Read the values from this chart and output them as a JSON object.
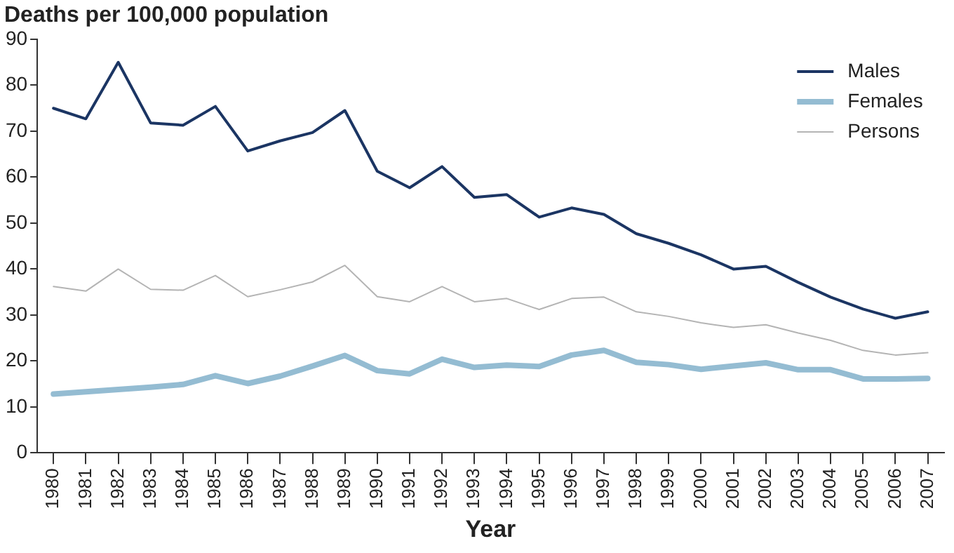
{
  "chart_data": {
    "type": "line",
    "ylabel": "Deaths per 100,000 population",
    "xlabel": "Year",
    "categories": [
      "1980",
      "1981",
      "1982",
      "1983",
      "1984",
      "1985",
      "1986",
      "1987",
      "1988",
      "1989",
      "1990",
      "1991",
      "1992",
      "1993",
      "1994",
      "1995",
      "1996",
      "1997",
      "1998",
      "1999",
      "2000",
      "2001",
      "2002",
      "2003",
      "2004",
      "2005",
      "2006",
      "2007"
    ],
    "series": [
      {
        "name": "Males",
        "color": "#1b3563",
        "values": [
          75,
          72.7,
          85,
          71.8,
          71.3,
          75.4,
          65.7,
          67.9,
          69.7,
          74.5,
          61.3,
          57.7,
          62.3,
          55.6,
          56.2,
          51.3,
          53.3,
          51.9,
          47.7,
          45.6,
          43.1,
          40,
          40.6,
          37.1,
          33.9,
          31.3,
          29.3,
          30.7
        ]
      },
      {
        "name": "Females",
        "color": "#94bcd2",
        "values": [
          12.8,
          13.3,
          13.8,
          14.3,
          14.9,
          16.8,
          15.1,
          16.7,
          18.9,
          21.2,
          17.9,
          17.2,
          20.4,
          18.6,
          19.1,
          18.8,
          21.3,
          22.3,
          19.7,
          19.2,
          18.2,
          18.9,
          19.6,
          18.1,
          18.1,
          16.1,
          16.1,
          16.2
        ]
      },
      {
        "name": "Persons",
        "color": "#b4b4b4",
        "values": [
          36.2,
          35.2,
          40,
          35.6,
          35.4,
          38.6,
          34,
          35.5,
          37.2,
          40.8,
          34,
          32.9,
          36.2,
          32.9,
          33.6,
          31.2,
          33.6,
          33.9,
          30.7,
          29.7,
          28.3,
          27.3,
          27.9,
          26.1,
          24.5,
          22.3,
          21.3,
          21.8
        ]
      }
    ],
    "ylim": [
      0,
      90
    ],
    "yticks": [
      0,
      10,
      20,
      30,
      40,
      50,
      60,
      70,
      80,
      90
    ],
    "grid": false,
    "legend": "top right",
    "marker": "none",
    "line_style": "solid"
  }
}
